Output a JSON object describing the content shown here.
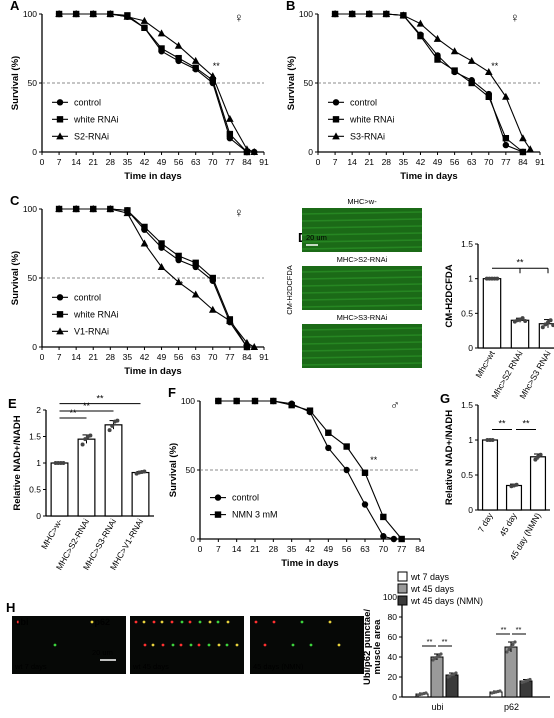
{
  "chart_data": [
    {
      "id": "A",
      "type": "line",
      "panel_letter": "A",
      "sex_symbol": "♀",
      "xlabel": "Time in days",
      "ylabel": "Survival (%)",
      "xticks": [
        0,
        7,
        14,
        21,
        28,
        35,
        42,
        49,
        56,
        63,
        70,
        77,
        84,
        91
      ],
      "yticks": [
        0,
        50,
        100
      ],
      "xlim": [
        0,
        91
      ],
      "ylim": [
        0,
        100
      ],
      "significance": "**",
      "series": [
        {
          "name": "control",
          "marker": "circle",
          "x": [
            7,
            14,
            21,
            28,
            35,
            42,
            49,
            56,
            63,
            70,
            77,
            84,
            87
          ],
          "y": [
            100,
            100,
            100,
            100,
            98,
            90,
            73,
            66,
            60,
            50,
            10,
            0,
            0
          ]
        },
        {
          "name": "white RNAi",
          "marker": "square",
          "x": [
            7,
            14,
            21,
            28,
            35,
            42,
            49,
            56,
            63,
            70,
            77,
            84
          ],
          "y": [
            100,
            100,
            100,
            100,
            99,
            90,
            75,
            68,
            61,
            52,
            13,
            0
          ]
        },
        {
          "name": "S2-RNAi",
          "marker": "triangle",
          "x": [
            7,
            14,
            21,
            28,
            35,
            42,
            49,
            56,
            63,
            70,
            77,
            84,
            87
          ],
          "y": [
            100,
            100,
            100,
            100,
            98,
            95,
            86,
            77,
            66,
            55,
            24,
            2,
            0
          ]
        }
      ]
    },
    {
      "id": "B",
      "type": "line",
      "panel_letter": "B",
      "sex_symbol": "♀",
      "xlabel": "Time in days",
      "ylabel": "Survival (%)",
      "xticks": [
        0,
        7,
        14,
        21,
        28,
        35,
        42,
        49,
        56,
        63,
        70,
        77,
        84,
        91
      ],
      "yticks": [
        0,
        50,
        100
      ],
      "xlim": [
        0,
        91
      ],
      "ylim": [
        0,
        100
      ],
      "significance": "**",
      "series": [
        {
          "name": "control",
          "marker": "circle",
          "x": [
            7,
            14,
            21,
            28,
            35,
            42,
            49,
            56,
            63,
            70,
            77,
            84
          ],
          "y": [
            100,
            100,
            100,
            100,
            99,
            85,
            70,
            58,
            52,
            42,
            5,
            0
          ]
        },
        {
          "name": "white RNAi",
          "marker": "square",
          "x": [
            7,
            14,
            21,
            28,
            35,
            42,
            49,
            56,
            63,
            70,
            77,
            84
          ],
          "y": [
            100,
            100,
            100,
            100,
            99,
            84,
            67,
            59,
            50,
            40,
            10,
            0
          ]
        },
        {
          "name": "S3-RNAi",
          "marker": "triangle",
          "x": [
            7,
            14,
            21,
            28,
            35,
            42,
            49,
            56,
            63,
            70,
            77,
            84,
            87
          ],
          "y": [
            100,
            100,
            100,
            100,
            99,
            93,
            82,
            73,
            66,
            58,
            40,
            10,
            2
          ]
        }
      ]
    },
    {
      "id": "C",
      "type": "line",
      "panel_letter": "C",
      "sex_symbol": "♀",
      "xlabel": "Time in days",
      "ylabel": "Survival (%)",
      "xticks": [
        0,
        7,
        14,
        21,
        28,
        35,
        42,
        49,
        56,
        63,
        70,
        77,
        84,
        91
      ],
      "yticks": [
        0,
        50,
        100
      ],
      "xlim": [
        0,
        91
      ],
      "ylim": [
        0,
        100
      ],
      "significance": "**",
      "series": [
        {
          "name": "control",
          "marker": "circle",
          "x": [
            7,
            14,
            21,
            28,
            35,
            42,
            49,
            56,
            63,
            70,
            77,
            84
          ],
          "y": [
            100,
            100,
            100,
            100,
            99,
            85,
            72,
            63,
            58,
            48,
            18,
            0
          ]
        },
        {
          "name": "white RNAi",
          "marker": "square",
          "x": [
            7,
            14,
            21,
            28,
            35,
            42,
            49,
            56,
            63,
            70,
            77,
            84
          ],
          "y": [
            100,
            100,
            100,
            100,
            99,
            87,
            75,
            66,
            61,
            50,
            20,
            0
          ]
        },
        {
          "name": "V1-RNAi",
          "marker": "triangle",
          "x": [
            7,
            14,
            21,
            28,
            35,
            42,
            49,
            56,
            63,
            70,
            77,
            84,
            87
          ],
          "y": [
            100,
            100,
            100,
            100,
            97,
            75,
            58,
            47,
            38,
            27,
            19,
            3,
            0
          ]
        }
      ]
    },
    {
      "id": "D",
      "type": "bar",
      "panel_letter": "D",
      "ylabel": "CM-H2DCFDA",
      "side_label": "CM-H2DCFDA",
      "image_titles": [
        "MHC>w-",
        "MHC>S2-RNAi",
        "MHC>S3-RNAi"
      ],
      "scale_label": "20 um",
      "categories": [
        "Mhc>wt",
        "Mhc>S2 RNAi",
        "Mhc>S3 RNAi"
      ],
      "values": [
        1.0,
        0.4,
        0.35
      ],
      "errors": [
        0.01,
        0.03,
        0.06
      ],
      "points": [
        [
          1.0,
          1.0,
          1.0,
          1.0,
          1.0
        ],
        [
          0.38,
          0.4,
          0.41,
          0.43,
          0.39
        ],
        [
          0.3,
          0.34,
          0.37,
          0.4,
          0.33
        ]
      ],
      "yticks": [
        0.0,
        0.5,
        1.0,
        1.5
      ],
      "ylim": [
        0,
        1.5
      ],
      "significance": "**"
    },
    {
      "id": "E",
      "type": "bar",
      "panel_letter": "E",
      "ylabel": "Relative NAD+/NADH",
      "categories": [
        "MHC>w-",
        "MHC>S2-RNAi",
        "MHC>S3-RNAi",
        "MHC>V1-RNAi"
      ],
      "values": [
        1.0,
        1.45,
        1.72,
        0.82
      ],
      "errors": [
        0.01,
        0.08,
        0.08,
        0.02
      ],
      "points": [
        [
          1.0,
          1.0,
          1.0,
          1.0
        ],
        [
          1.35,
          1.45,
          1.5,
          1.52
        ],
        [
          1.62,
          1.7,
          1.78,
          1.8
        ],
        [
          0.8,
          0.82,
          0.83,
          0.84
        ]
      ],
      "yticks": [
        0.0,
        0.5,
        1.0,
        1.5,
        2.0
      ],
      "ylim": [
        0,
        2.0
      ],
      "significance": [
        "**",
        "**",
        "**"
      ]
    },
    {
      "id": "F",
      "type": "line",
      "panel_letter": "F",
      "sex_symbol": "♂",
      "xlabel": "Time in days",
      "ylabel": "Survival (%)",
      "xticks": [
        0,
        7,
        14,
        21,
        28,
        35,
        42,
        49,
        56,
        63,
        70,
        77,
        84
      ],
      "yticks": [
        0,
        50,
        100
      ],
      "xlim": [
        0,
        84
      ],
      "ylim": [
        0,
        100
      ],
      "significance": "**",
      "series": [
        {
          "name": "control",
          "marker": "circle",
          "x": [
            7,
            14,
            21,
            28,
            35,
            42,
            49,
            56,
            63,
            70,
            74
          ],
          "y": [
            100,
            100,
            100,
            100,
            98,
            92,
            66,
            50,
            25,
            2,
            0
          ]
        },
        {
          "name": "NMN 3 mM",
          "marker": "square",
          "x": [
            7,
            14,
            21,
            28,
            35,
            42,
            49,
            56,
            63,
            70,
            77
          ],
          "y": [
            100,
            100,
            100,
            100,
            97,
            93,
            77,
            67,
            48,
            16,
            0
          ]
        }
      ]
    },
    {
      "id": "G",
      "type": "bar",
      "panel_letter": "G",
      "ylabel": "Relative NAD+/NADH",
      "categories": [
        "7 day",
        "45 day",
        "45 day (NMN)"
      ],
      "values": [
        1.0,
        0.35,
        0.76
      ],
      "errors": [
        0.01,
        0.02,
        0.04
      ],
      "points": [
        [
          1.0,
          1.0,
          1.0
        ],
        [
          0.34,
          0.35,
          0.36
        ],
        [
          0.72,
          0.76,
          0.79
        ]
      ],
      "yticks": [
        0.0,
        0.5,
        1.0,
        1.5
      ],
      "ylim": [
        0,
        1.5
      ],
      "significance": [
        "**",
        "**"
      ]
    },
    {
      "id": "H",
      "type": "bar",
      "panel_letter": "H",
      "ylabel": "Ubi/p62 punctae/ muscle area",
      "image_channel_labels": [
        "ubi",
        "p62"
      ],
      "image_captions": [
        "wt 7 days",
        "wt 45 days",
        "45 days (NMN)"
      ],
      "scale_label": "20 um",
      "categories": [
        "ubi",
        "p62"
      ],
      "series": [
        {
          "name": "wt 7 days",
          "values": [
            3,
            5
          ],
          "errors": [
            1,
            1
          ]
        },
        {
          "name": "wt 45 days",
          "values": [
            40,
            50
          ],
          "errors": [
            3,
            5
          ]
        },
        {
          "name": "wt 45 days (NMN)",
          "values": [
            22,
            16
          ],
          "errors": [
            2,
            1.5
          ]
        }
      ],
      "yticks": [
        0,
        20,
        40,
        60,
        80,
        100
      ],
      "ylim": [
        0,
        100
      ],
      "significance": [
        "**",
        "**",
        "**",
        "**"
      ]
    }
  ]
}
